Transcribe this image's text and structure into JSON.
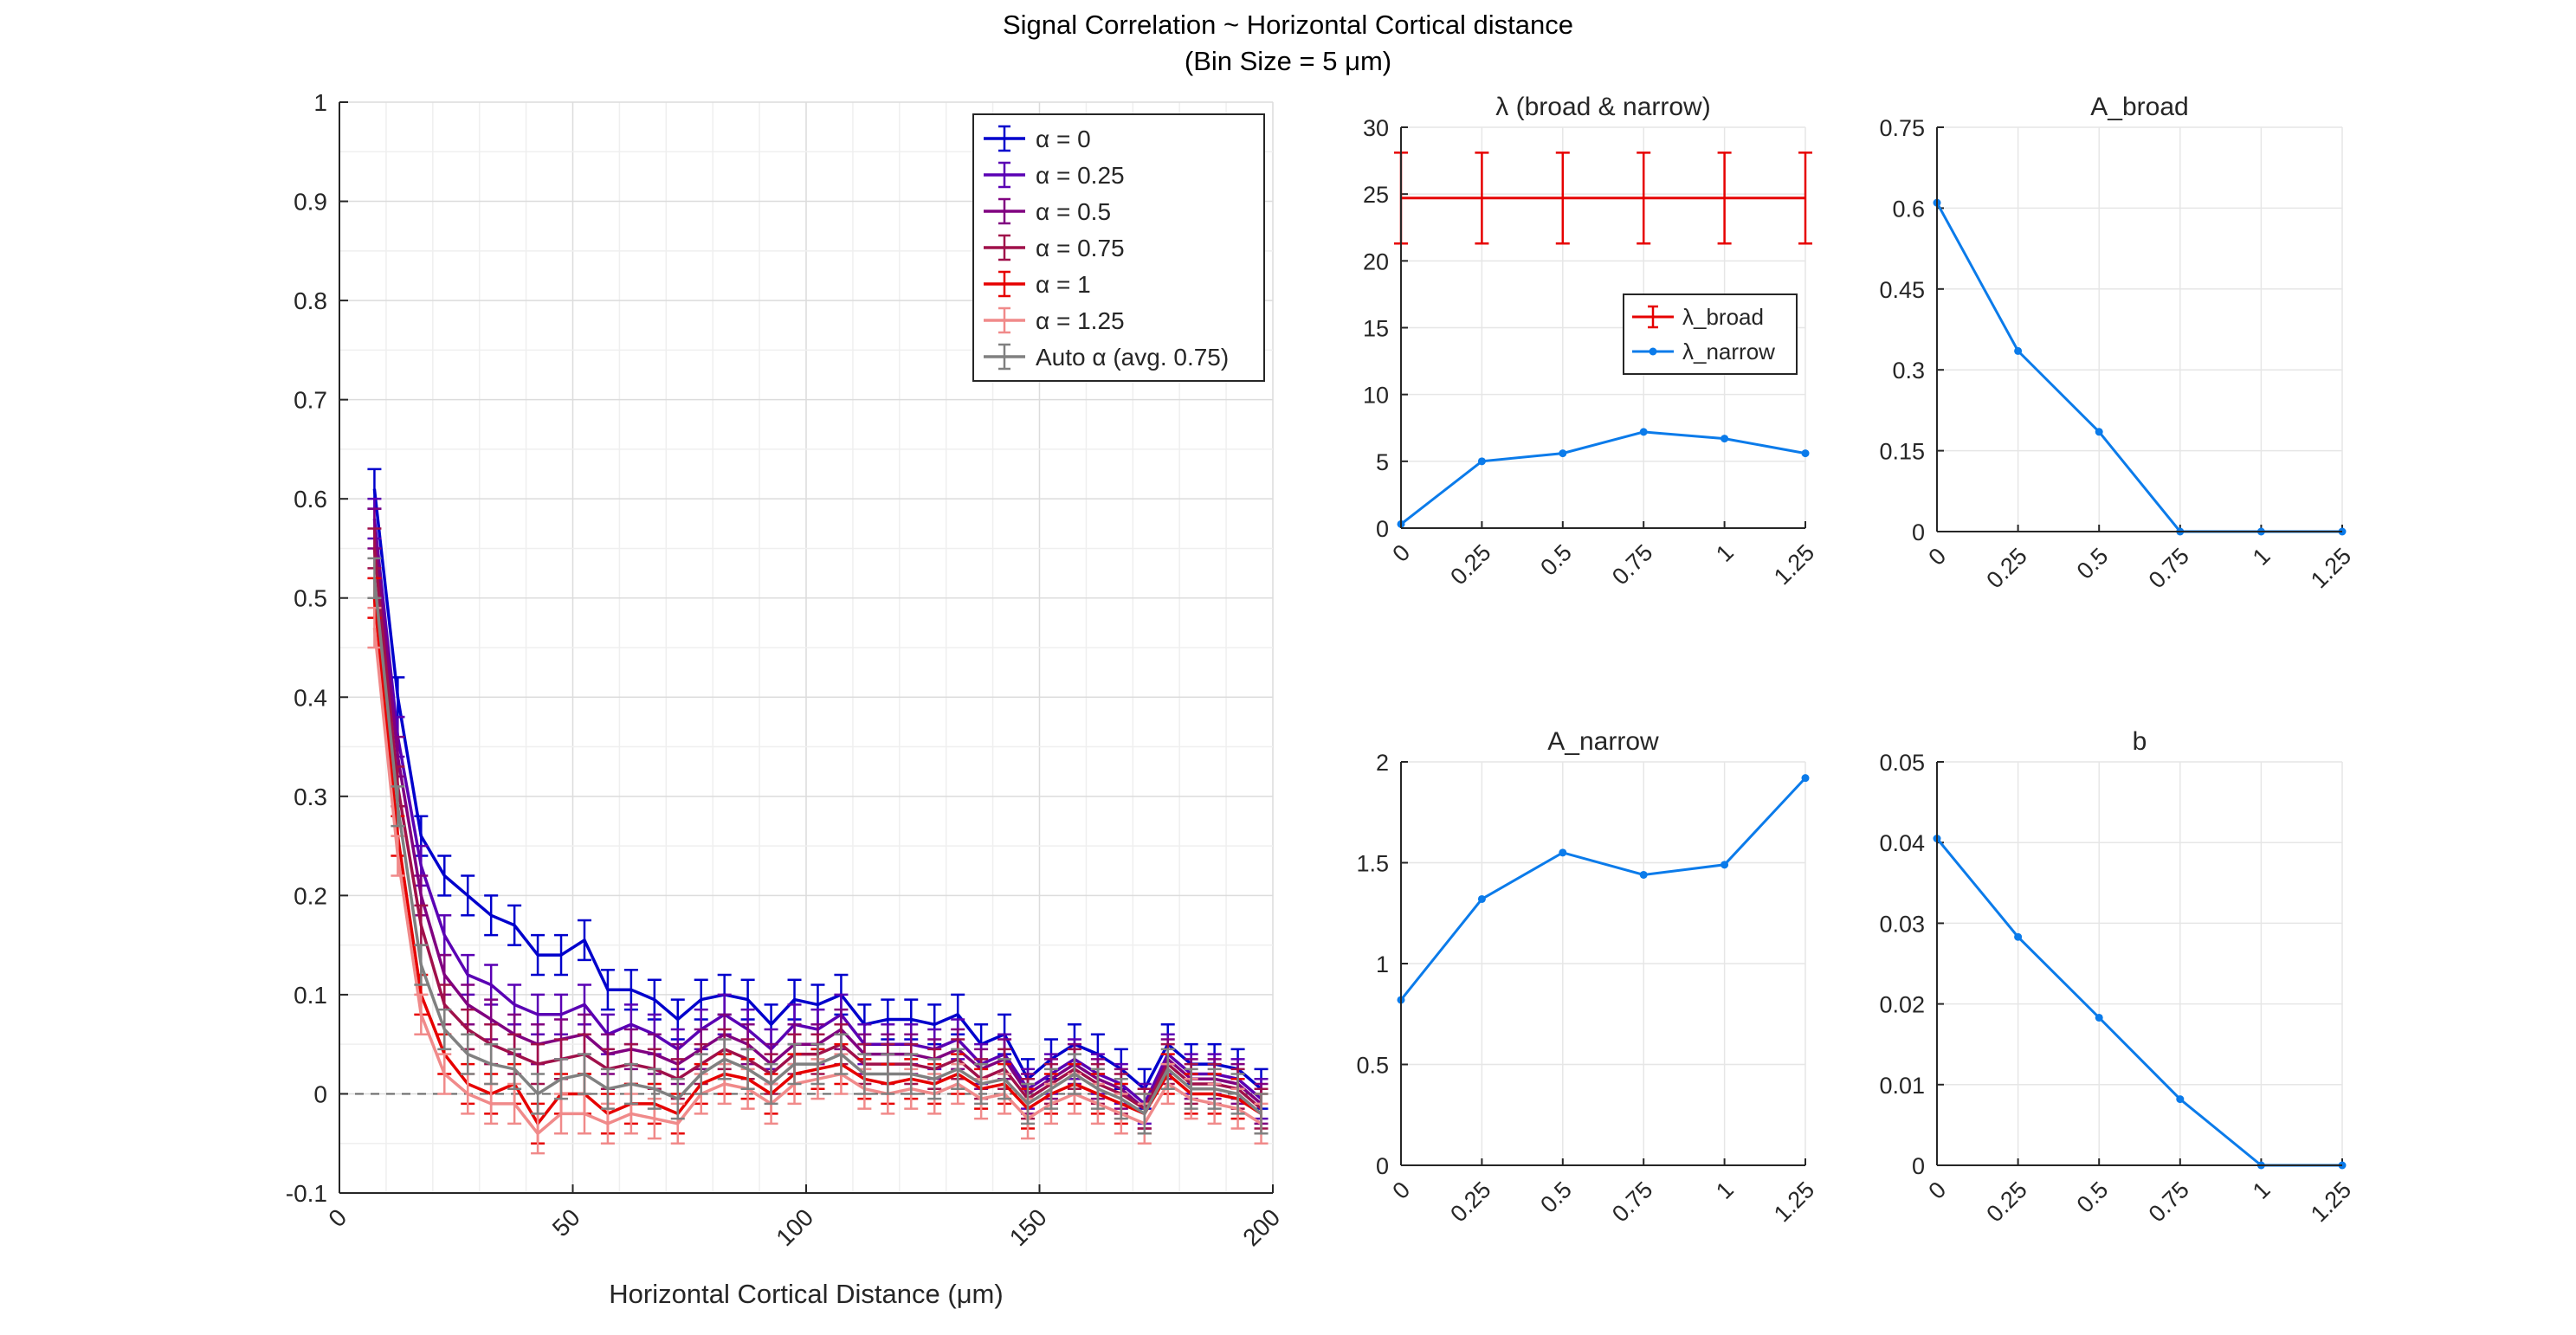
{
  "figure": {
    "title_line1": "Signal Correlation ~ Horizontal Cortical distance",
    "title_line2": "(Bin Size = 5 μm)"
  },
  "chart_data": [
    {
      "type": "line",
      "title": "",
      "xlabel": "Horizontal Cortical Distance (μm)",
      "ylabel": "",
      "xlim": [
        0,
        200
      ],
      "ylim": [
        -0.1,
        1
      ],
      "x_ticks": [
        "0",
        "50",
        "100",
        "150",
        "200"
      ],
      "y_ticks": [
        "-0.1",
        "0",
        "0.1",
        "0.2",
        "0.3",
        "0.4",
        "0.5",
        "0.6",
        "0.7",
        "0.8",
        "0.9",
        "1"
      ],
      "grid": true,
      "legend_position": "top-right",
      "reference_line": {
        "y": 0,
        "style": "dashed"
      },
      "x": [
        7.5,
        12.5,
        17.5,
        22.5,
        27.5,
        32.5,
        37.5,
        42.5,
        47.5,
        52.5,
        57.5,
        62.5,
        67.5,
        72.5,
        77.5,
        82.5,
        87.5,
        92.5,
        97.5,
        102.5,
        107.5,
        112.5,
        117.5,
        122.5,
        127.5,
        132.5,
        137.5,
        142.5,
        147.5,
        152.5,
        157.5,
        162.5,
        167.5,
        172.5,
        177.5,
        182.5,
        187.5,
        192.5,
        197.5
      ],
      "series": [
        {
          "name": "α = 0",
          "color": "#0000cc",
          "error": 0.02,
          "values": [
            0.61,
            0.4,
            0.26,
            0.22,
            0.2,
            0.18,
            0.17,
            0.14,
            0.14,
            0.155,
            0.105,
            0.105,
            0.095,
            0.075,
            0.095,
            0.1,
            0.095,
            0.07,
            0.095,
            0.09,
            0.1,
            0.07,
            0.075,
            0.075,
            0.07,
            0.08,
            0.05,
            0.06,
            0.015,
            0.035,
            0.05,
            0.04,
            0.025,
            0.005,
            0.05,
            0.03,
            0.03,
            0.025,
            0.005
          ]
        },
        {
          "name": "α = 0.25",
          "color": "#5a00b4",
          "error": 0.02,
          "values": [
            0.58,
            0.36,
            0.23,
            0.16,
            0.12,
            0.11,
            0.09,
            0.08,
            0.08,
            0.09,
            0.06,
            0.07,
            0.06,
            0.045,
            0.065,
            0.08,
            0.065,
            0.045,
            0.07,
            0.065,
            0.08,
            0.05,
            0.05,
            0.05,
            0.045,
            0.055,
            0.03,
            0.04,
            0.005,
            0.02,
            0.035,
            0.02,
            0.01,
            -0.01,
            0.04,
            0.02,
            0.02,
            0.015,
            -0.005
          ]
        },
        {
          "name": "α = 0.5",
          "color": "#800080",
          "error": 0.02,
          "values": [
            0.57,
            0.34,
            0.2,
            0.12,
            0.09,
            0.075,
            0.06,
            0.05,
            0.055,
            0.06,
            0.04,
            0.045,
            0.04,
            0.03,
            0.045,
            0.06,
            0.05,
            0.03,
            0.05,
            0.05,
            0.065,
            0.04,
            0.04,
            0.04,
            0.035,
            0.045,
            0.025,
            0.035,
            0.0,
            0.015,
            0.03,
            0.015,
            0.005,
            -0.015,
            0.035,
            0.015,
            0.015,
            0.01,
            -0.01
          ]
        },
        {
          "name": "α = 0.75",
          "color": "#a0104a",
          "error": 0.02,
          "values": [
            0.55,
            0.31,
            0.17,
            0.09,
            0.065,
            0.05,
            0.04,
            0.03,
            0.035,
            0.04,
            0.025,
            0.03,
            0.025,
            0.015,
            0.03,
            0.045,
            0.035,
            0.02,
            0.04,
            0.04,
            0.05,
            0.03,
            0.03,
            0.03,
            0.025,
            0.035,
            0.015,
            0.025,
            -0.005,
            0.01,
            0.025,
            0.01,
            0.0,
            -0.015,
            0.03,
            0.01,
            0.01,
            0.005,
            -0.015
          ]
        },
        {
          "name": "α = 1",
          "color": "#e60000",
          "error": 0.02,
          "values": [
            0.5,
            0.26,
            0.1,
            0.04,
            0.01,
            0.0,
            0.01,
            -0.03,
            0.0,
            0.0,
            -0.02,
            -0.01,
            -0.01,
            -0.02,
            0.01,
            0.02,
            0.015,
            0.0,
            0.02,
            0.025,
            0.03,
            0.015,
            0.01,
            0.015,
            0.01,
            0.02,
            0.005,
            0.01,
            -0.015,
            0.0,
            0.01,
            0.0,
            -0.01,
            -0.02,
            0.02,
            0.0,
            0.0,
            -0.005,
            -0.02
          ]
        },
        {
          "name": "α = 1.25",
          "color": "#f08a8a",
          "error": 0.02,
          "values": [
            0.47,
            0.24,
            0.08,
            0.02,
            0.0,
            -0.01,
            -0.01,
            -0.04,
            -0.02,
            -0.02,
            -0.03,
            -0.02,
            -0.025,
            -0.03,
            0.0,
            0.01,
            0.005,
            -0.01,
            0.01,
            0.015,
            0.02,
            0.005,
            0.0,
            0.005,
            0.0,
            0.01,
            -0.005,
            0.0,
            -0.025,
            -0.01,
            0.0,
            -0.01,
            -0.02,
            -0.03,
            0.01,
            -0.005,
            -0.01,
            -0.015,
            -0.03
          ]
        },
        {
          "name": "Auto α (avg. 0.75)",
          "color": "#808080",
          "error": 0.02,
          "values": [
            0.52,
            0.29,
            0.13,
            0.065,
            0.04,
            0.03,
            0.025,
            0.0,
            0.015,
            0.02,
            0.005,
            0.01,
            0.005,
            -0.005,
            0.02,
            0.035,
            0.025,
            0.01,
            0.03,
            0.03,
            0.04,
            0.02,
            0.02,
            0.02,
            0.015,
            0.025,
            0.01,
            0.015,
            -0.01,
            0.005,
            0.02,
            0.005,
            -0.005,
            -0.02,
            0.025,
            0.005,
            0.005,
            0.0,
            -0.02
          ]
        }
      ]
    },
    {
      "type": "line",
      "title": "λ (broad & narrow)",
      "categories": [
        "0",
        "0.25",
        "0.5",
        "0.75",
        "1",
        "1.25"
      ],
      "x": [
        0,
        0.25,
        0.5,
        0.75,
        1,
        1.25
      ],
      "ylim": [
        0,
        30
      ],
      "y_ticks": [
        "0",
        "5",
        "10",
        "15",
        "20",
        "25",
        "30"
      ],
      "grid": true,
      "legend_position": "middle-right",
      "series": [
        {
          "name": "λ_broad",
          "color": "#e60000",
          "values": [
            24.7,
            24.7,
            24.7,
            24.7,
            24.7,
            24.7
          ],
          "error": 3.4
        },
        {
          "name": "λ_narrow",
          "color": "#0b7bea",
          "values": [
            0.3,
            5.0,
            5.6,
            7.2,
            6.7,
            5.6
          ]
        }
      ]
    },
    {
      "type": "line",
      "title": "A_broad",
      "categories": [
        "0",
        "0.25",
        "0.5",
        "0.75",
        "1",
        "1.25"
      ],
      "x": [
        0,
        0.25,
        0.5,
        0.75,
        1,
        1.25
      ],
      "ylim": [
        0,
        0.75
      ],
      "y_ticks": [
        "0",
        "0.15",
        "0.3",
        "0.45",
        "0.6",
        "0.75"
      ],
      "grid": true,
      "series": [
        {
          "color": "#0b7bea",
          "values": [
            0.61,
            0.335,
            0.185,
            0.0,
            0.0,
            0.0
          ]
        }
      ]
    },
    {
      "type": "line",
      "title": "A_narrow",
      "categories": [
        "0",
        "0.25",
        "0.5",
        "0.75",
        "1",
        "1.25"
      ],
      "x": [
        0,
        0.25,
        0.5,
        0.75,
        1,
        1.25
      ],
      "ylim": [
        0,
        2
      ],
      "y_ticks": [
        "0",
        "0.5",
        "1",
        "1.5",
        "2"
      ],
      "grid": true,
      "series": [
        {
          "color": "#0b7bea",
          "values": [
            0.82,
            1.32,
            1.55,
            1.44,
            1.49,
            1.92
          ]
        }
      ]
    },
    {
      "type": "line",
      "title": "b",
      "categories": [
        "0",
        "0.25",
        "0.5",
        "0.75",
        "1",
        "1.25"
      ],
      "x": [
        0,
        0.25,
        0.5,
        0.75,
        1,
        1.25
      ],
      "ylim": [
        0,
        0.05
      ],
      "y_ticks": [
        "0",
        "0.01",
        "0.02",
        "0.03",
        "0.04",
        "0.05"
      ],
      "grid": true,
      "series": [
        {
          "color": "#0b7bea",
          "values": [
            0.0405,
            0.0283,
            0.0183,
            0.0082,
            0.0,
            0.0
          ]
        }
      ]
    }
  ]
}
